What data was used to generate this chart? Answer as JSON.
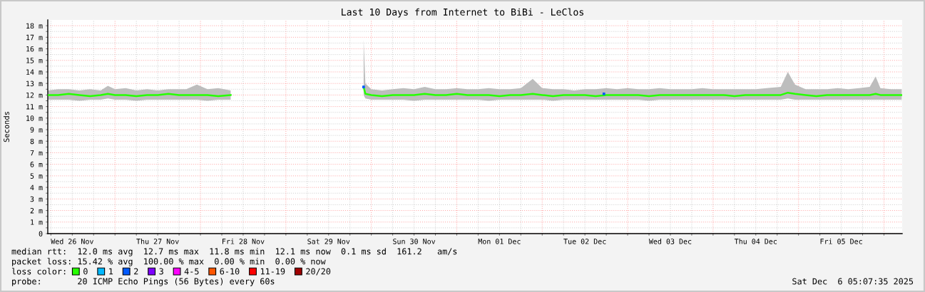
{
  "chart_data": {
    "type": "line",
    "title": "Last 10 Days from Internet to BiBi - LeClos",
    "ylabel": "Seconds",
    "legend_title": "loss color:",
    "legend": "bottom",
    "grid": true,
    "annotations": [
      "median rtt:  12.0 ms avg  12.7 ms max  11.8 ms min  12.1 ms now  0.1 ms sd  161.2   am/s",
      "packet loss: 15.42 % avg  100.00 % max  0.00 % min  0.00 % now",
      "probe:       20 ICMP Echo Pings (56 Bytes) every 60s",
      "Sat Dec  6 05:07:35 2025"
    ],
    "xlim": [
      "2025-11-26T05:07",
      "2025-12-06T05:07"
    ],
    "ylim": [
      0,
      18.5
    ],
    "xticks": [
      {
        "value": "2025-11-26T06:00",
        "label": null
      },
      {
        "value": "2025-11-26T12:00",
        "label": "Wed 26 Nov"
      },
      {
        "value": "2025-11-26T18:00",
        "label": null
      },
      {
        "value": "2025-11-27T00:00",
        "label": null
      },
      {
        "value": "2025-11-27T06:00",
        "label": null
      },
      {
        "value": "2025-11-27T12:00",
        "label": "Thu 27 Nov"
      },
      {
        "value": "2025-11-27T18:00",
        "label": null
      },
      {
        "value": "2025-11-28T00:00",
        "label": null
      },
      {
        "value": "2025-11-28T06:00",
        "label": null
      },
      {
        "value": "2025-11-28T12:00",
        "label": "Fri 28 Nov"
      },
      {
        "value": "2025-11-28T18:00",
        "label": null
      },
      {
        "value": "2025-11-29T00:00",
        "label": null
      },
      {
        "value": "2025-11-29T06:00",
        "label": null
      },
      {
        "value": "2025-11-29T12:00",
        "label": "Sat 29 Nov"
      },
      {
        "value": "2025-11-29T18:00",
        "label": null
      },
      {
        "value": "2025-11-30T00:00",
        "label": null
      },
      {
        "value": "2025-11-30T06:00",
        "label": null
      },
      {
        "value": "2025-11-30T12:00",
        "label": "Sun 30 Nov"
      },
      {
        "value": "2025-11-30T18:00",
        "label": null
      },
      {
        "value": "2025-12-01T00:00",
        "label": null
      },
      {
        "value": "2025-12-01T06:00",
        "label": null
      },
      {
        "value": "2025-12-01T12:00",
        "label": "Mon 01 Dec"
      },
      {
        "value": "2025-12-01T18:00",
        "label": null
      },
      {
        "value": "2025-12-02T00:00",
        "label": null
      },
      {
        "value": "2025-12-02T06:00",
        "label": null
      },
      {
        "value": "2025-12-02T12:00",
        "label": "Tue 02 Dec"
      },
      {
        "value": "2025-12-02T18:00",
        "label": null
      },
      {
        "value": "2025-12-03T00:00",
        "label": null
      },
      {
        "value": "2025-12-03T06:00",
        "label": null
      },
      {
        "value": "2025-12-03T12:00",
        "label": "Wed 03 Dec"
      },
      {
        "value": "2025-12-03T18:00",
        "label": null
      },
      {
        "value": "2025-12-04T00:00",
        "label": null
      },
      {
        "value": "2025-12-04T06:00",
        "label": null
      },
      {
        "value": "2025-12-04T12:00",
        "label": "Thu 04 Dec"
      },
      {
        "value": "2025-12-04T18:00",
        "label": null
      },
      {
        "value": "2025-12-05T00:00",
        "label": null
      },
      {
        "value": "2025-12-05T06:00",
        "label": null
      },
      {
        "value": "2025-12-05T12:00",
        "label": "Fri 05 Dec"
      },
      {
        "value": "2025-12-05T18:00",
        "label": null
      },
      {
        "value": "2025-12-06T00:00",
        "label": null
      }
    ],
    "yticks": [
      0,
      {
        "value": 0.5,
        "label": null
      },
      {
        "value": 1,
        "label": "1 m"
      },
      {
        "value": 1.5,
        "label": null
      },
      {
        "value": 2,
        "label": "2 m"
      },
      {
        "value": 2.5,
        "label": null
      },
      {
        "value": 3,
        "label": "3 m"
      },
      {
        "value": 3.5,
        "label": null
      },
      {
        "value": 4,
        "label": "4 m"
      },
      {
        "value": 4.5,
        "label": null
      },
      {
        "value": 5,
        "label": "5 m"
      },
      {
        "value": 5.5,
        "label": null
      },
      {
        "value": 6,
        "label": "6 m"
      },
      {
        "value": 6.5,
        "label": null
      },
      {
        "value": 7,
        "label": "7 m"
      },
      {
        "value": 7.5,
        "label": null
      },
      {
        "value": 8,
        "label": "8 m"
      },
      {
        "value": 8.5,
        "label": null
      },
      {
        "value": 9,
        "label": "9 m"
      },
      {
        "value": 9.5,
        "label": null
      },
      {
        "value": 10,
        "label": "10 m"
      },
      {
        "value": 10.5,
        "label": null
      },
      {
        "value": 11,
        "label": "11 m"
      },
      {
        "value": 11.5,
        "label": null
      },
      {
        "value": 12,
        "label": "12 m"
      },
      {
        "value": 12.5,
        "label": null
      },
      {
        "value": 13,
        "label": "13 m"
      },
      {
        "value": 13.5,
        "label": null
      },
      {
        "value": 14,
        "label": "14 m"
      },
      {
        "value": 14.5,
        "label": null
      },
      {
        "value": 15,
        "label": "15 m"
      },
      {
        "value": 15.5,
        "label": null
      },
      {
        "value": 16,
        "label": "16 m"
      },
      {
        "value": 16.5,
        "label": null
      },
      {
        "value": 17,
        "label": "17 m"
      },
      {
        "value": 17.5,
        "label": null
      },
      {
        "value": 18,
        "label": "18 m"
      }
    ],
    "x": [
      "2025-11-26T05:10",
      "2025-11-26T08:00",
      "2025-11-26T11:00",
      "2025-11-26T14:00",
      "2025-11-26T17:00",
      "2025-11-26T20:00",
      "2025-11-26T22:00",
      "2025-11-27T00:00",
      "2025-11-27T03:00",
      "2025-11-27T06:00",
      "2025-11-27T09:00",
      "2025-11-27T12:00",
      "2025-11-27T15:00",
      "2025-11-27T18:00",
      "2025-11-27T20:00",
      "2025-11-27T23:00",
      "2025-11-28T02:00",
      "2025-11-28T05:00",
      "2025-11-28T08:30",
      "2025-11-29T12:00",
      "2025-11-29T21:50",
      "2025-11-29T22:20",
      "2025-11-30T00:00",
      "2025-11-30T03:00",
      "2025-11-30T06:00",
      "2025-11-30T09:00",
      "2025-11-30T12:00",
      "2025-11-30T15:00",
      "2025-11-30T18:00",
      "2025-11-30T21:00",
      "2025-12-01T00:00",
      "2025-12-01T03:00",
      "2025-12-01T06:00",
      "2025-12-01T09:00",
      "2025-12-01T12:00",
      "2025-12-01T15:00",
      "2025-12-01T18:00",
      "2025-12-01T21:20",
      "2025-12-02T00:00",
      "2025-12-02T03:00",
      "2025-12-02T06:00",
      "2025-12-02T09:00",
      "2025-12-02T12:00",
      "2025-12-02T15:00",
      "2025-12-02T18:00",
      "2025-12-02T21:00",
      "2025-12-03T00:00",
      "2025-12-03T03:00",
      "2025-12-03T06:00",
      "2025-12-03T09:00",
      "2025-12-03T12:00",
      "2025-12-03T15:00",
      "2025-12-03T18:00",
      "2025-12-03T21:00",
      "2025-12-04T00:00",
      "2025-12-04T03:00",
      "2025-12-04T06:00",
      "2025-12-04T09:00",
      "2025-12-04T12:00",
      "2025-12-04T15:00",
      "2025-12-04T19:00",
      "2025-12-04T21:00",
      "2025-12-04T23:00",
      "2025-12-05T02:00",
      "2025-12-05T05:00",
      "2025-12-05T08:00",
      "2025-12-05T11:00",
      "2025-12-05T14:00",
      "2025-12-05T17:00",
      "2025-12-05T20:00",
      "2025-12-05T21:40",
      "2025-12-05T23:00",
      "2025-12-06T02:00",
      "2025-12-06T05:00"
    ],
    "series": [
      {
        "name": "0",
        "color": "#26ff00",
        "values": [
          12.0,
          12.0,
          12.1,
          12.0,
          11.9,
          12.0,
          12.1,
          12.0,
          12.0,
          11.9,
          12.0,
          12.0,
          12.1,
          12.0,
          12.0,
          12.0,
          12.0,
          11.9,
          12.0,
          null,
          12.7,
          12.1,
          12.0,
          11.9,
          12.0,
          12.0,
          12.0,
          12.1,
          12.0,
          12.0,
          12.1,
          12.0,
          12.0,
          12.0,
          11.9,
          12.0,
          12.0,
          12.1,
          12.0,
          11.9,
          12.0,
          12.0,
          12.0,
          11.9,
          12.0,
          12.0,
          12.0,
          12.0,
          11.9,
          12.0,
          12.0,
          12.0,
          12.0,
          12.0,
          12.0,
          12.0,
          11.9,
          12.0,
          12.0,
          12.0,
          12.0,
          12.2,
          12.1,
          12.0,
          11.9,
          12.0,
          12.0,
          12.0,
          12.0,
          12.0,
          12.1,
          12.0,
          12.0,
          12.0
        ],
        "lower": [
          11.6,
          11.6,
          11.6,
          11.5,
          11.6,
          11.6,
          11.7,
          11.6,
          11.6,
          11.5,
          11.6,
          11.6,
          11.6,
          11.6,
          11.6,
          11.6,
          11.5,
          11.6,
          11.6,
          null,
          12.0,
          11.7,
          11.6,
          11.6,
          11.6,
          11.6,
          11.5,
          11.6,
          11.6,
          11.6,
          11.6,
          11.6,
          11.6,
          11.5,
          11.6,
          11.6,
          11.6,
          11.6,
          11.6,
          11.5,
          11.6,
          11.6,
          11.6,
          11.6,
          11.6,
          11.6,
          11.6,
          11.6,
          11.5,
          11.6,
          11.6,
          11.6,
          11.6,
          11.6,
          11.6,
          11.6,
          11.6,
          11.6,
          11.6,
          11.6,
          11.6,
          11.7,
          11.6,
          11.6,
          11.6,
          11.6,
          11.6,
          11.6,
          11.6,
          11.6,
          11.6,
          11.6,
          11.6,
          11.6
        ],
        "upper": [
          12.4,
          12.5,
          12.5,
          12.4,
          12.5,
          12.4,
          12.8,
          12.5,
          12.6,
          12.4,
          12.5,
          12.4,
          12.5,
          12.5,
          12.5,
          12.9,
          12.5,
          12.6,
          12.4,
          null,
          16.8,
          13.0,
          12.5,
          12.4,
          12.5,
          12.6,
          12.5,
          12.7,
          12.5,
          12.5,
          12.6,
          12.5,
          12.5,
          12.6,
          12.5,
          12.5,
          12.6,
          13.4,
          12.6,
          12.5,
          12.5,
          12.4,
          12.5,
          12.5,
          12.6,
          12.5,
          12.6,
          12.5,
          12.5,
          12.6,
          12.5,
          12.5,
          12.5,
          12.6,
          12.5,
          12.5,
          12.5,
          12.5,
          12.5,
          12.6,
          12.7,
          14.0,
          12.9,
          12.5,
          12.5,
          12.5,
          12.6,
          12.5,
          12.6,
          12.7,
          13.6,
          12.6,
          12.5,
          12.5
        ]
      },
      {
        "name": "1",
        "color": "#00b8ff",
        "type": "scatter",
        "marker": "square",
        "values": [
          null,
          null,
          null,
          null,
          null,
          null,
          null,
          null,
          null,
          null,
          null,
          null,
          null,
          null,
          null,
          null,
          null,
          null,
          null,
          null,
          null,
          null,
          null,
          null,
          null,
          null,
          null,
          null,
          null,
          null,
          null,
          null,
          null,
          null,
          null,
          null,
          null,
          null,
          null,
          null,
          null,
          null,
          null,
          null,
          null,
          null,
          null,
          null,
          null,
          null,
          null,
          null,
          null,
          null,
          null,
          null,
          null,
          null,
          null,
          null,
          null,
          null,
          null,
          null,
          null,
          null,
          null,
          null,
          null,
          null,
          null,
          null,
          null,
          null
        ]
      },
      {
        "name": "2",
        "color": "#0059ff",
        "type": "scatter",
        "marker": "square",
        "x": [
          "2025-11-29T21:50",
          "2025-12-02T17:20"
        ],
        "values": [
          12.7,
          12.1
        ]
      },
      {
        "name": "3",
        "color": "#7e00ff",
        "type": "scatter",
        "marker": "square",
        "values": [
          null,
          null,
          null,
          null,
          null,
          null,
          null,
          null,
          null,
          null,
          null,
          null,
          null,
          null,
          null,
          null,
          null,
          null,
          null,
          null,
          null,
          null,
          null,
          null,
          null,
          null,
          null,
          null,
          null,
          null,
          null,
          null,
          null,
          null,
          null,
          null,
          null,
          null,
          null,
          null,
          null,
          null,
          null,
          null,
          null,
          null,
          null,
          null,
          null,
          null,
          null,
          null,
          null,
          null,
          null,
          null,
          null,
          null,
          null,
          null,
          null,
          null,
          null,
          null,
          null,
          null,
          null,
          null,
          null,
          null,
          null,
          null,
          null,
          null
        ]
      },
      {
        "name": "4-5",
        "color": "#ff00ff",
        "type": "scatter",
        "marker": "square",
        "values": [
          null,
          null,
          null,
          null,
          null,
          null,
          null,
          null,
          null,
          null,
          null,
          null,
          null,
          null,
          null,
          null,
          null,
          null,
          null,
          null,
          null,
          null,
          null,
          null,
          null,
          null,
          null,
          null,
          null,
          null,
          null,
          null,
          null,
          null,
          null,
          null,
          null,
          null,
          null,
          null,
          null,
          null,
          null,
          null,
          null,
          null,
          null,
          null,
          null,
          null,
          null,
          null,
          null,
          null,
          null,
          null,
          null,
          null,
          null,
          null,
          null,
          null,
          null,
          null,
          null,
          null,
          null,
          null,
          null,
          null,
          null,
          null,
          null,
          null
        ]
      },
      {
        "name": "6-10",
        "color": "#ff5500",
        "type": "scatter",
        "marker": "square",
        "values": [
          null,
          null,
          null,
          null,
          null,
          null,
          null,
          null,
          null,
          null,
          null,
          null,
          null,
          null,
          null,
          null,
          null,
          null,
          null,
          null,
          null,
          null,
          null,
          null,
          null,
          null,
          null,
          null,
          null,
          null,
          null,
          null,
          null,
          null,
          null,
          null,
          null,
          null,
          null,
          null,
          null,
          null,
          null,
          null,
          null,
          null,
          null,
          null,
          null,
          null,
          null,
          null,
          null,
          null,
          null,
          null,
          null,
          null,
          null,
          null,
          null,
          null,
          null,
          null,
          null,
          null,
          null,
          null,
          null,
          null,
          null,
          null,
          null,
          null
        ]
      },
      {
        "name": "11-19",
        "color": "#ff0000",
        "type": "scatter",
        "marker": "square",
        "values": [
          null,
          null,
          null,
          null,
          null,
          null,
          null,
          null,
          null,
          null,
          null,
          null,
          null,
          null,
          null,
          null,
          null,
          null,
          null,
          null,
          null,
          null,
          null,
          null,
          null,
          null,
          null,
          null,
          null,
          null,
          null,
          null,
          null,
          null,
          null,
          null,
          null,
          null,
          null,
          null,
          null,
          null,
          null,
          null,
          null,
          null,
          null,
          null,
          null,
          null,
          null,
          null,
          null,
          null,
          null,
          null,
          null,
          null,
          null,
          null,
          null,
          null,
          null,
          null,
          null,
          null,
          null,
          null,
          null,
          null,
          null,
          null,
          null,
          null
        ]
      },
      {
        "name": "20/20",
        "color": "#a00000",
        "type": "scatter",
        "marker": "square",
        "values": [
          null,
          null,
          null,
          null,
          null,
          null,
          null,
          null,
          null,
          null,
          null,
          null,
          null,
          null,
          null,
          null,
          null,
          null,
          null,
          null,
          null,
          null,
          null,
          null,
          null,
          null,
          null,
          null,
          null,
          null,
          null,
          null,
          null,
          null,
          null,
          null,
          null,
          null,
          null,
          null,
          null,
          null,
          null,
          null,
          null,
          null,
          null,
          null,
          null,
          null,
          null,
          null,
          null,
          null,
          null,
          null,
          null,
          null,
          null,
          null,
          null,
          null,
          null,
          null,
          null,
          null,
          null,
          null,
          null,
          null,
          null,
          null,
          null,
          null
        ]
      }
    ]
  }
}
